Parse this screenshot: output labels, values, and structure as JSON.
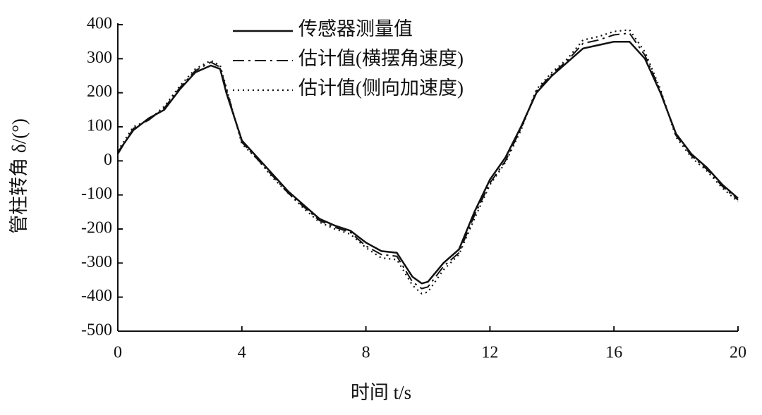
{
  "chart_data": {
    "type": "line",
    "x_label": "时间 t/s",
    "y_label": "管柱转角 δ/(°)",
    "x": [
      0,
      0.5,
      1,
      1.5,
      2,
      2.5,
      3,
      3.3,
      3.5,
      4,
      4.5,
      5,
      5.5,
      6,
      6.5,
      7,
      7.5,
      8,
      8.5,
      9,
      9.5,
      9.8,
      10,
      10.5,
      11,
      11.5,
      12,
      12.5,
      13,
      13.5,
      14,
      14.5,
      15,
      15.5,
      16,
      16.5,
      17,
      17.5,
      18,
      18.5,
      19,
      19.5,
      20
    ],
    "series": [
      {
        "name": "传感器测量值",
        "color": "#111111",
        "line_style": "solid",
        "values": [
          25,
          90,
          125,
          150,
          210,
          260,
          280,
          270,
          200,
          60,
          10,
          -40,
          -90,
          -130,
          -170,
          -190,
          -205,
          -240,
          -265,
          -270,
          -340,
          -360,
          -355,
          -300,
          -260,
          -150,
          -55,
          10,
          100,
          200,
          250,
          290,
          330,
          340,
          350,
          350,
          300,
          200,
          80,
          20,
          -20,
          -70,
          -110
        ]
      },
      {
        "name": "估计值(横摆角速度)",
        "color": "#111111",
        "line_style": "dashdot",
        "values": [
          20,
          95,
          120,
          155,
          215,
          265,
          290,
          275,
          210,
          55,
          5,
          -45,
          -95,
          -135,
          -175,
          -195,
          -210,
          -250,
          -275,
          -280,
          -355,
          -375,
          -370,
          -310,
          -270,
          -160,
          -65,
          0,
          95,
          205,
          255,
          295,
          345,
          355,
          370,
          375,
          310,
          205,
          75,
          15,
          -25,
          -75,
          -115
        ]
      },
      {
        "name": "估计值(侧向加速度)",
        "color": "#111111",
        "line_style": "dotted",
        "values": [
          30,
          100,
          120,
          160,
          220,
          270,
          295,
          280,
          215,
          50,
          5,
          -50,
          -95,
          -140,
          -180,
          -200,
          -215,
          -255,
          -285,
          -290,
          -365,
          -390,
          -385,
          -320,
          -275,
          -170,
          -70,
          -5,
          90,
          210,
          260,
          300,
          355,
          365,
          380,
          385,
          320,
          210,
          70,
          10,
          -30,
          -80,
          -120
        ]
      }
    ],
    "xlim": [
      0,
      20
    ],
    "xticks": [
      0,
      4,
      8,
      12,
      16,
      20
    ],
    "ylim": [
      -500,
      400
    ],
    "yticks": [
      -500,
      -400,
      -300,
      -200,
      -100,
      0,
      100,
      200,
      300,
      400
    ],
    "grid": false,
    "legend": "top"
  }
}
